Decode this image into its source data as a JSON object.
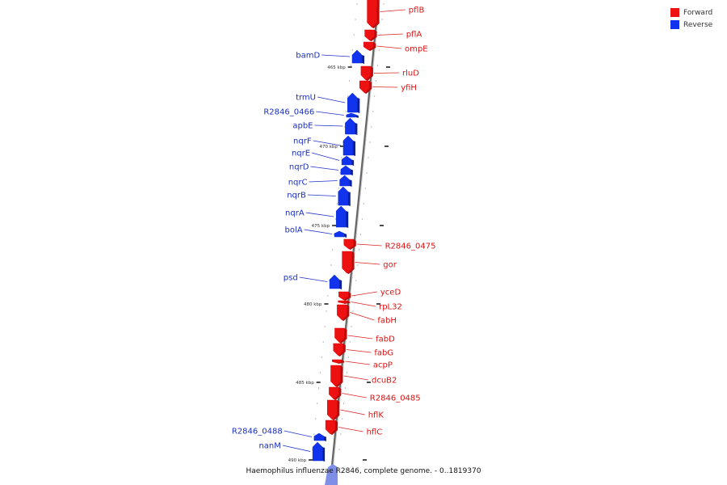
{
  "legend": {
    "forward_label": "Forward",
    "reverse_label": "Reverse",
    "forward_color": "#ee1111",
    "reverse_color": "#1133ee"
  },
  "caption": "Haemophilus influenzae R2846, complete genome. - 0..1819370",
  "scale_labels": [
    "465 kbp",
    "470 kbp",
    "475 kbp",
    "480 kbp",
    "485 kbp",
    "490 kbp"
  ],
  "genes": [
    {
      "name": "pflB",
      "strand": "forward"
    },
    {
      "name": "pflA",
      "strand": "forward"
    },
    {
      "name": "ompE",
      "strand": "forward"
    },
    {
      "name": "bamD",
      "strand": "reverse"
    },
    {
      "name": "rluD",
      "strand": "forward"
    },
    {
      "name": "yfiH",
      "strand": "forward"
    },
    {
      "name": "trmU",
      "strand": "reverse"
    },
    {
      "name": "R2846_0466",
      "strand": "reverse"
    },
    {
      "name": "apbE",
      "strand": "reverse"
    },
    {
      "name": "nqrF",
      "strand": "reverse"
    },
    {
      "name": "nqrE",
      "strand": "reverse"
    },
    {
      "name": "nqrD",
      "strand": "reverse"
    },
    {
      "name": "nqrC",
      "strand": "reverse"
    },
    {
      "name": "nqrB",
      "strand": "reverse"
    },
    {
      "name": "nqrA",
      "strand": "reverse"
    },
    {
      "name": "bolA",
      "strand": "reverse"
    },
    {
      "name": "R2846_0475",
      "strand": "forward"
    },
    {
      "name": "gor",
      "strand": "forward"
    },
    {
      "name": "psd",
      "strand": "reverse"
    },
    {
      "name": "yceD",
      "strand": "forward"
    },
    {
      "name": "rpL32",
      "strand": "forward"
    },
    {
      "name": "fabH",
      "strand": "forward"
    },
    {
      "name": "fabD",
      "strand": "forward"
    },
    {
      "name": "fabG",
      "strand": "forward"
    },
    {
      "name": "acpP",
      "strand": "forward"
    },
    {
      "name": "dcuB2",
      "strand": "forward"
    },
    {
      "name": "R2846_0485",
      "strand": "forward"
    },
    {
      "name": "hflK",
      "strand": "forward"
    },
    {
      "name": "hflC",
      "strand": "forward"
    },
    {
      "name": "R2846_0488",
      "strand": "reverse"
    },
    {
      "name": "nanM",
      "strand": "reverse"
    }
  ]
}
